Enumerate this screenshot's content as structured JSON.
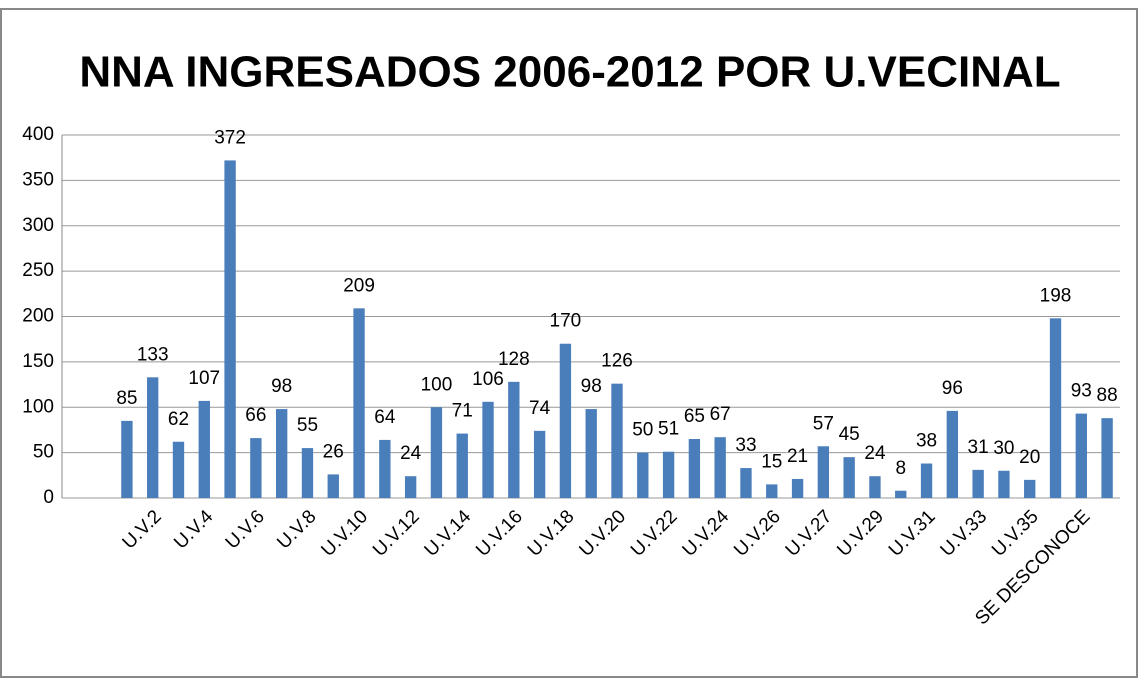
{
  "chart_data": {
    "type": "bar",
    "title": "NNA INGRESADOS 2006-2012 POR U.VECINAL",
    "categories": [
      null,
      "U.V.2",
      null,
      "U.V.4",
      null,
      "U.V.6",
      null,
      "U.V.8",
      null,
      "U.V.10",
      null,
      "U.V.12",
      null,
      "U.V.14",
      null,
      "U.V.16",
      null,
      "U.V.18",
      null,
      "U.V.20",
      null,
      "U.V.22",
      null,
      "U.V.24",
      null,
      "U.V.26",
      null,
      "U.V.27",
      null,
      "U.V.29",
      null,
      "U.V.31",
      null,
      "U.V.33",
      null,
      "U.V.35",
      null,
      "SE DESCONOCE",
      null
    ],
    "values": [
      85,
      133,
      62,
      107,
      372,
      66,
      98,
      55,
      26,
      209,
      64,
      24,
      100,
      71,
      106,
      128,
      74,
      170,
      98,
      126,
      50,
      51,
      65,
      67,
      33,
      15,
      21,
      57,
      45,
      24,
      8,
      38,
      96,
      31,
      30,
      20,
      198,
      93,
      88
    ],
    "color": "#4a7ebb",
    "ylim": [
      0,
      400
    ],
    "yticks": [
      0,
      50,
      100,
      150,
      200,
      250,
      300,
      350,
      400
    ],
    "grid": true
  }
}
